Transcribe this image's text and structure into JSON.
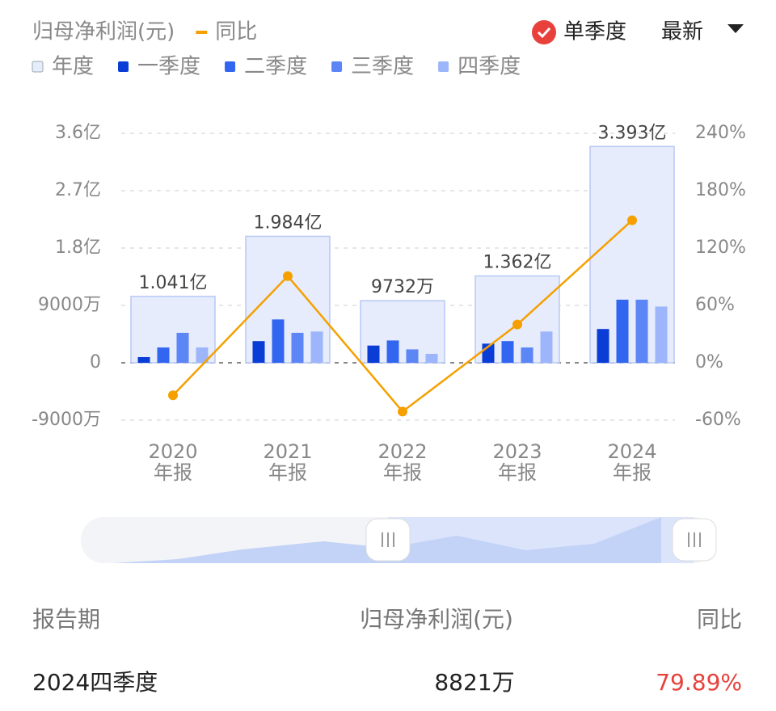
{
  "header": {
    "mode": "单季度",
    "sort": "最新"
  },
  "chart_data": {
    "type": "bar",
    "title": "归母净利润(元)",
    "categories": [
      "2020年报",
      "2021年报",
      "2022年报",
      "2023年报",
      "2024年报"
    ],
    "series": [
      {
        "name": "年度",
        "color": "#e6ecfc",
        "values": [
          104100000,
          198400000,
          97320000,
          136200000,
          339300000
        ],
        "value_labels": [
          "1.041亿",
          "1.984亿",
          "9732万",
          "1.362亿",
          "3.393亿"
        ]
      },
      {
        "name": "一季度",
        "color": "#0a3cd6",
        "values": [
          8900000,
          34000000,
          27000000,
          30000000,
          53000000
        ]
      },
      {
        "name": "二季度",
        "color": "#3366f0",
        "values": [
          24000000,
          68000000,
          35000000,
          34000000,
          99000000
        ]
      },
      {
        "name": "三季度",
        "color": "#5c85f5",
        "values": [
          47000000,
          47000000,
          21000000,
          24000000,
          99000000
        ]
      },
      {
        "name": "四季度",
        "color": "#9db5fa",
        "values": [
          24000000,
          49000000,
          14000000,
          49000000,
          88210000
        ]
      },
      {
        "name": "同比",
        "color": "#f5a000",
        "type": "line",
        "axis": "y2",
        "values": [
          -34,
          90.6,
          -51,
          40,
          149
        ]
      }
    ],
    "ylim": [
      -90000000,
      360000000
    ],
    "yticks": [
      {
        "value": -90000000,
        "label": "-9000万"
      },
      {
        "value": 0,
        "label": "0"
      },
      {
        "value": 90000000,
        "label": "9000万"
      },
      {
        "value": 180000000,
        "label": "1.8亿"
      },
      {
        "value": 270000000,
        "label": "2.7亿"
      },
      {
        "value": 360000000,
        "label": "3.6亿"
      }
    ],
    "y2lim": [
      -60,
      240
    ],
    "y2ticks": [
      {
        "value": -60,
        "label": "-60%"
      },
      {
        "value": 0,
        "label": "0%"
      },
      {
        "value": 60,
        "label": "60%"
      },
      {
        "value": 120,
        "label": "120%"
      },
      {
        "value": 180,
        "label": "180%"
      },
      {
        "value": 240,
        "label": "240%"
      }
    ],
    "grid": true
  },
  "table": {
    "headers": [
      "报告期",
      "归母净利润(元)",
      "同比"
    ],
    "rows": [
      [
        "2024四季度",
        "8821万",
        "79.89%"
      ]
    ]
  }
}
